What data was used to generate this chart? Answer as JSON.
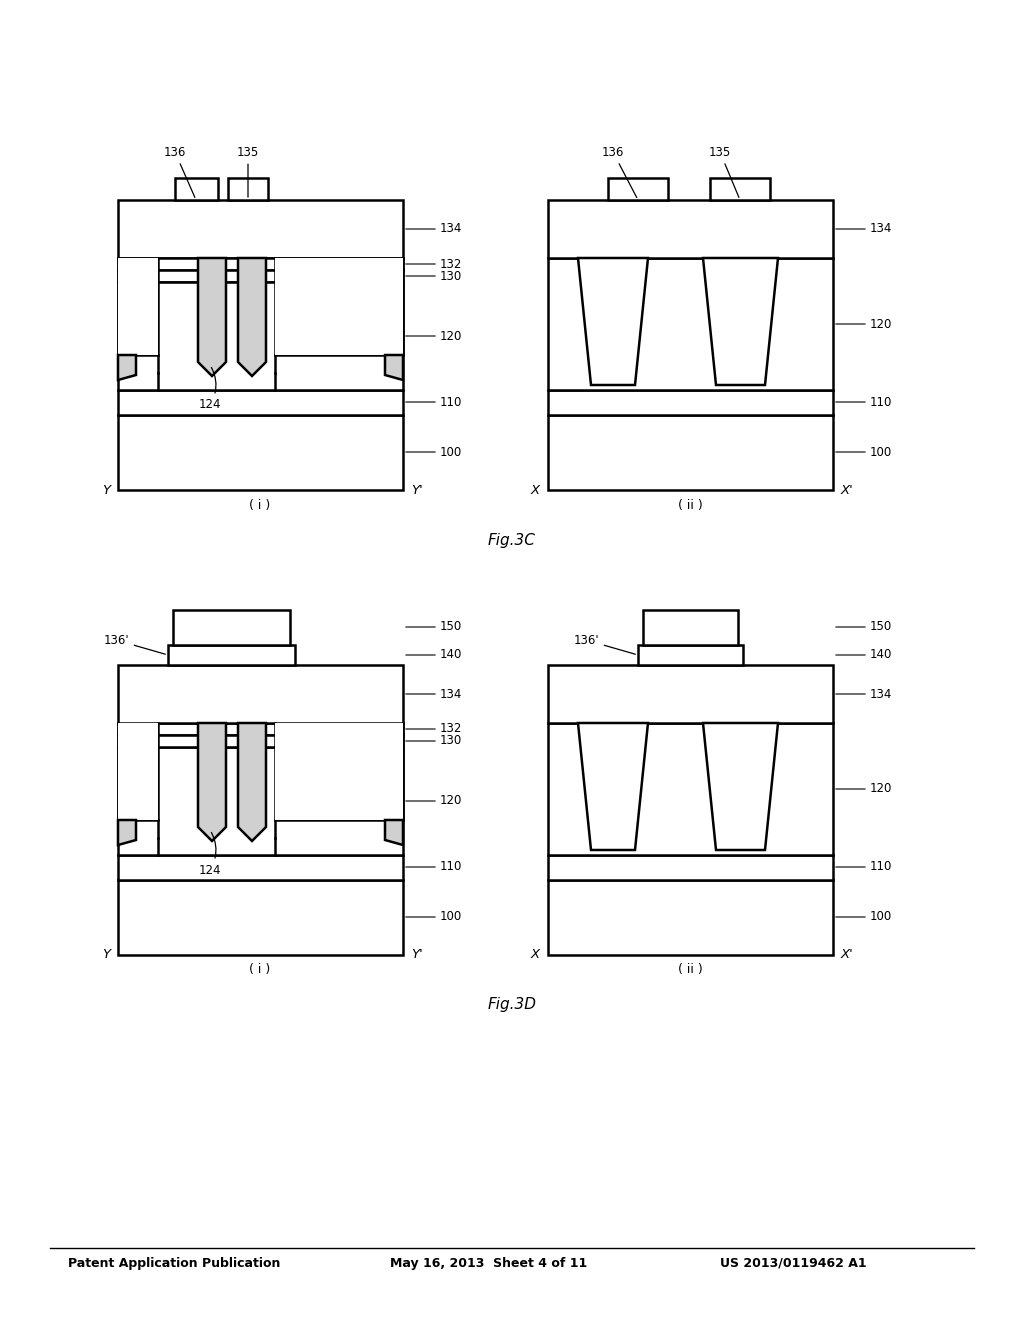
{
  "title_left": "Patent Application Publication",
  "title_mid": "May 16, 2013  Sheet 4 of 11",
  "title_right": "US 2013/0119462 A1",
  "fig_label_3c": "Fig.3C",
  "fig_label_3d": "Fig.3D",
  "background": "#ffffff",
  "line_color": "#000000",
  "fill_light": "#d0d0d0",
  "fill_white": "#ffffff"
}
